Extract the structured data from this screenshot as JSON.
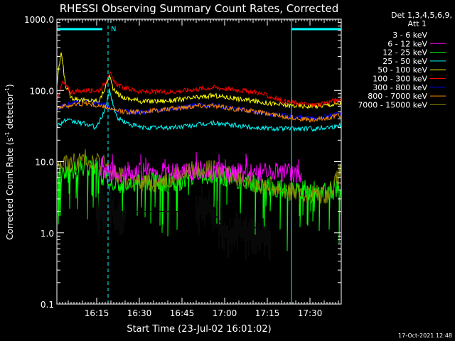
{
  "chart_data": {
    "type": "line",
    "title": "RHESSI Observing Summary Count Rates, Corrected",
    "xlabel": "Start Time (23-Jul-02 16:01:02)",
    "ylabel_main": "Corrected Count Rate (s",
    "ylabel_exp1": "-1",
    "ylabel_mid": " detector",
    "ylabel_exp2": "-1",
    "ylabel_end": ")",
    "y_scale": "log",
    "ylim": [
      0.1,
      1000
    ],
    "xlim_minutes": [
      0,
      100
    ],
    "x_ticks": [
      {
        "label": "16:15",
        "minute": 14
      },
      {
        "label": "16:30",
        "minute": 29
      },
      {
        "label": "16:45",
        "minute": 44
      },
      {
        "label": "17:00",
        "minute": 59
      },
      {
        "label": "17:15",
        "minute": 74
      },
      {
        "label": "17:30",
        "minute": 89
      }
    ],
    "y_ticks": [
      {
        "label": "0.1",
        "value": 0.1
      },
      {
        "label": "1.0",
        "value": 1.0
      },
      {
        "label": "10.0",
        "value": 10
      },
      {
        "label": "100.0",
        "value": 100
      },
      {
        "label": "1000.0",
        "value": 1000
      }
    ],
    "legend_header": [
      "Det 1,3,4,5,6,9,",
      "Att 1"
    ],
    "legend_position": "right",
    "timestamp": "17-Oct-2021 12:48",
    "night_label": "N",
    "night_bars": [
      [
        0,
        18
      ],
      [
        82.5,
        100
      ]
    ],
    "vlines_minutes": [
      0,
      18,
      82.5,
      100
    ],
    "series": [
      {
        "name": "3 - 6 keV",
        "color": "#000000",
        "range": [
          14,
          75
        ],
        "x": [
          14,
          18,
          20,
          24,
          49,
          52,
          55,
          57,
          60,
          62,
          64,
          66,
          68,
          70,
          72,
          75
        ],
        "y": [
          2.0,
          3.0,
          2.0,
          2.0,
          2.0,
          3.0,
          2.0,
          1.5,
          1.0,
          1.0,
          1.5,
          1.0,
          1.0,
          1.2,
          1.0,
          0.9
        ]
      },
      {
        "name": "6 - 12 keV",
        "color": "#ff00ff",
        "range": [
          15,
          86
        ],
        "x": [
          15,
          25,
          40,
          50,
          60,
          70,
          80,
          86
        ],
        "y": [
          7.2,
          7.0,
          7.0,
          7.5,
          7.0,
          7.0,
          7.0,
          6.5
        ]
      },
      {
        "name": "12 - 25 keV",
        "color": "#00ff00",
        "range": [
          0,
          100
        ],
        "x": [
          0,
          5,
          10,
          14,
          16,
          20,
          25,
          30,
          40,
          50,
          55,
          60,
          65,
          70,
          75,
          80,
          85,
          90,
          95,
          100
        ],
        "y": [
          6.0,
          7.0,
          9.0,
          8.0,
          6.0,
          4.5,
          5.0,
          5.5,
          5.0,
          6.0,
          6.5,
          6.0,
          5.5,
          5.0,
          4.5,
          4.0,
          4.0,
          4.0,
          4.0,
          4.0
        ]
      },
      {
        "name": "25 - 50 keV",
        "color": "#00ffff",
        "range": [
          0,
          100
        ],
        "x": [
          0,
          3,
          6,
          10,
          14,
          17,
          18.5,
          21,
          25,
          30,
          40,
          50,
          55,
          60,
          70,
          80,
          90,
          100
        ],
        "y": [
          32,
          38,
          36,
          34,
          30,
          55,
          100,
          42,
          34,
          30,
          30,
          33,
          35,
          33,
          30,
          29,
          29,
          32
        ]
      },
      {
        "name": "50 - 100 keV",
        "color": "#ffff00",
        "range": [
          0,
          100
        ],
        "x": [
          0,
          1.5,
          3,
          5,
          10,
          15,
          17,
          18.5,
          20,
          23,
          30,
          40,
          50,
          55,
          60,
          70,
          80,
          90,
          100
        ],
        "y": [
          120,
          350,
          120,
          80,
          72,
          72,
          110,
          160,
          100,
          80,
          70,
          72,
          80,
          85,
          80,
          70,
          62,
          60,
          65
        ]
      },
      {
        "name": "100 - 300 keV",
        "color": "#ff0000",
        "range": [
          0,
          100
        ],
        "x": [
          0,
          2,
          5,
          10,
          15,
          17,
          18.5,
          20,
          23,
          30,
          40,
          50,
          55,
          60,
          70,
          80,
          90,
          100
        ],
        "y": [
          75,
          130,
          95,
          100,
          100,
          130,
          180,
          130,
          110,
          95,
          95,
          105,
          110,
          105,
          95,
          70,
          62,
          75
        ]
      },
      {
        "name": "300 - 800 keV",
        "color": "#0000ff",
        "range": [
          0,
          100
        ],
        "x": [
          0,
          5,
          10,
          15,
          18,
          20,
          25,
          30,
          40,
          50,
          55,
          60,
          70,
          80,
          90,
          100
        ],
        "y": [
          55,
          65,
          70,
          65,
          60,
          52,
          50,
          50,
          55,
          63,
          62,
          58,
          50,
          44,
          40,
          47
        ]
      },
      {
        "name": "800 - 7000 keV",
        "color": "#ff8c00",
        "range": [
          0,
          100
        ],
        "x": [
          0,
          5,
          10,
          15,
          18,
          20,
          25,
          30,
          40,
          50,
          55,
          60,
          70,
          80,
          90,
          100
        ],
        "y": [
          58,
          62,
          66,
          60,
          58,
          52,
          50,
          50,
          55,
          62,
          60,
          57,
          50,
          43,
          38,
          45
        ]
      },
      {
        "name": "7000 - 15000 keV",
        "color": "#8b8b00",
        "range": [
          0,
          100
        ],
        "x": [
          0,
          5,
          10,
          14,
          17,
          20,
          25,
          30,
          35,
          40,
          45,
          50,
          55,
          60,
          65,
          70,
          75,
          80,
          85,
          90,
          95,
          98,
          100
        ],
        "y": [
          8.0,
          9.5,
          11.0,
          10.5,
          9.0,
          6.5,
          5.5,
          5.0,
          5.0,
          6.0,
          7.0,
          8.0,
          7.5,
          7.0,
          6.0,
          5.0,
          4.5,
          4.0,
          3.5,
          3.5,
          3.5,
          5.0,
          7.5
        ]
      }
    ]
  }
}
